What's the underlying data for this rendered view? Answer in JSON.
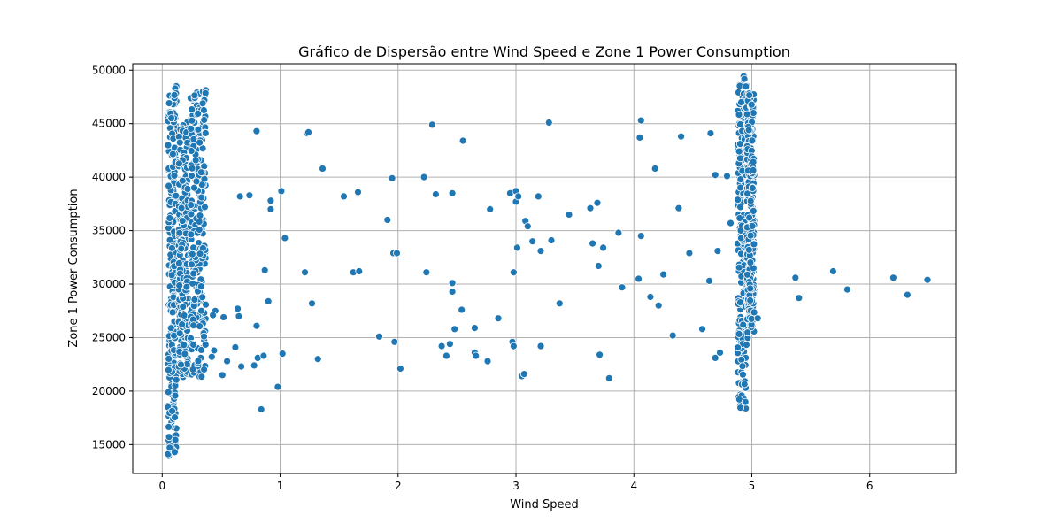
{
  "chart_data": {
    "type": "scatter",
    "title": "Gráfico de Dispersão entre Wind Speed e Zone 1 Power Consumption",
    "xlabel": "Wind Speed",
    "ylabel": "Zone 1 Power Consumption",
    "xlim": [
      -0.25,
      6.73
    ],
    "ylim": [
      12300,
      50600
    ],
    "xticks": [
      0,
      1,
      2,
      3,
      4,
      5,
      6
    ],
    "yticks": [
      15000,
      20000,
      25000,
      30000,
      35000,
      40000,
      45000,
      50000
    ],
    "xtick_labels": [
      "0",
      "1",
      "2",
      "3",
      "4",
      "5",
      "6"
    ],
    "ytick_labels": [
      "15000",
      "20000",
      "25000",
      "30000",
      "35000",
      "40000",
      "45000",
      "50000"
    ],
    "grid": true,
    "marker_color": "#1f77b4",
    "marker_edge_color": "#ffffff",
    "clusters": [
      {
        "x_range": [
          0.05,
          0.12
        ],
        "y_range": [
          13900,
          48700
        ]
      },
      {
        "x_range": [
          0.14,
          0.22
        ],
        "y_range": [
          21300,
          45200
        ]
      },
      {
        "x_range": [
          0.24,
          0.37
        ],
        "y_range": [
          21300,
          48300
        ]
      },
      {
        "x_range": [
          4.88,
          4.96
        ],
        "y_range": [
          18300,
          49800
        ]
      },
      {
        "x_range": [
          4.96,
          5.02
        ],
        "y_range": [
          24900,
          47900
        ]
      }
    ],
    "points": [
      {
        "x": 0.45,
        "y": 27500
      },
      {
        "x": 0.43,
        "y": 27100
      },
      {
        "x": 0.44,
        "y": 23800
      },
      {
        "x": 0.42,
        "y": 23200
      },
      {
        "x": 0.52,
        "y": 26900
      },
      {
        "x": 0.51,
        "y": 21500
      },
      {
        "x": 0.55,
        "y": 22800
      },
      {
        "x": 0.62,
        "y": 24100
      },
      {
        "x": 0.64,
        "y": 27700
      },
      {
        "x": 0.65,
        "y": 27000
      },
      {
        "x": 0.67,
        "y": 22300
      },
      {
        "x": 0.66,
        "y": 38200
      },
      {
        "x": 0.74,
        "y": 38300
      },
      {
        "x": 0.78,
        "y": 22400
      },
      {
        "x": 0.8,
        "y": 26100
      },
      {
        "x": 0.8,
        "y": 44300
      },
      {
        "x": 0.81,
        "y": 23100
      },
      {
        "x": 0.84,
        "y": 18300
      },
      {
        "x": 0.86,
        "y": 23300
      },
      {
        "x": 0.87,
        "y": 31300
      },
      {
        "x": 0.9,
        "y": 28400
      },
      {
        "x": 0.92,
        "y": 37800
      },
      {
        "x": 0.92,
        "y": 37000
      },
      {
        "x": 0.98,
        "y": 20400
      },
      {
        "x": 1.01,
        "y": 38700
      },
      {
        "x": 1.02,
        "y": 23500
      },
      {
        "x": 1.04,
        "y": 34300
      },
      {
        "x": 1.21,
        "y": 31100
      },
      {
        "x": 1.23,
        "y": 44100
      },
      {
        "x": 1.24,
        "y": 44200
      },
      {
        "x": 1.27,
        "y": 28200
      },
      {
        "x": 1.32,
        "y": 23000
      },
      {
        "x": 1.36,
        "y": 40800
      },
      {
        "x": 1.54,
        "y": 38200
      },
      {
        "x": 1.62,
        "y": 31100
      },
      {
        "x": 1.66,
        "y": 38600
      },
      {
        "x": 1.67,
        "y": 31200
      },
      {
        "x": 1.84,
        "y": 25100
      },
      {
        "x": 1.91,
        "y": 36000
      },
      {
        "x": 1.95,
        "y": 39900
      },
      {
        "x": 1.96,
        "y": 32900
      },
      {
        "x": 1.97,
        "y": 24600
      },
      {
        "x": 1.99,
        "y": 32900
      },
      {
        "x": 2.02,
        "y": 22100
      },
      {
        "x": 2.22,
        "y": 40000
      },
      {
        "x": 2.24,
        "y": 31100
      },
      {
        "x": 2.29,
        "y": 44900
      },
      {
        "x": 2.32,
        "y": 38400
      },
      {
        "x": 2.37,
        "y": 24200
      },
      {
        "x": 2.41,
        "y": 23300
      },
      {
        "x": 2.44,
        "y": 24400
      },
      {
        "x": 2.46,
        "y": 30100
      },
      {
        "x": 2.46,
        "y": 29300
      },
      {
        "x": 2.46,
        "y": 38500
      },
      {
        "x": 2.48,
        "y": 25800
      },
      {
        "x": 2.54,
        "y": 27600
      },
      {
        "x": 2.55,
        "y": 43400
      },
      {
        "x": 2.65,
        "y": 25900
      },
      {
        "x": 2.65,
        "y": 23600
      },
      {
        "x": 2.66,
        "y": 23300
      },
      {
        "x": 2.76,
        "y": 22800
      },
      {
        "x": 2.78,
        "y": 37000
      },
      {
        "x": 2.85,
        "y": 26800
      },
      {
        "x": 2.95,
        "y": 38500
      },
      {
        "x": 2.97,
        "y": 24600
      },
      {
        "x": 2.98,
        "y": 24200
      },
      {
        "x": 2.98,
        "y": 31100
      },
      {
        "x": 3.0,
        "y": 38700
      },
      {
        "x": 3.0,
        "y": 37700
      },
      {
        "x": 3.01,
        "y": 33400
      },
      {
        "x": 3.02,
        "y": 38200
      },
      {
        "x": 3.05,
        "y": 21400
      },
      {
        "x": 3.07,
        "y": 21600
      },
      {
        "x": 3.08,
        "y": 35900
      },
      {
        "x": 3.1,
        "y": 35400
      },
      {
        "x": 3.14,
        "y": 34000
      },
      {
        "x": 3.19,
        "y": 38200
      },
      {
        "x": 3.21,
        "y": 33100
      },
      {
        "x": 3.21,
        "y": 24200
      },
      {
        "x": 3.28,
        "y": 45100
      },
      {
        "x": 3.3,
        "y": 34100
      },
      {
        "x": 3.37,
        "y": 28200
      },
      {
        "x": 3.45,
        "y": 36500
      },
      {
        "x": 3.63,
        "y": 37100
      },
      {
        "x": 3.65,
        "y": 33800
      },
      {
        "x": 3.69,
        "y": 37600
      },
      {
        "x": 3.7,
        "y": 31700
      },
      {
        "x": 3.71,
        "y": 23400
      },
      {
        "x": 3.74,
        "y": 33400
      },
      {
        "x": 3.79,
        "y": 21200
      },
      {
        "x": 3.87,
        "y": 34800
      },
      {
        "x": 3.9,
        "y": 29700
      },
      {
        "x": 4.04,
        "y": 30500
      },
      {
        "x": 4.06,
        "y": 45300
      },
      {
        "x": 4.05,
        "y": 43700
      },
      {
        "x": 4.06,
        "y": 34500
      },
      {
        "x": 4.14,
        "y": 28800
      },
      {
        "x": 4.18,
        "y": 40800
      },
      {
        "x": 4.21,
        "y": 28000
      },
      {
        "x": 4.25,
        "y": 30900
      },
      {
        "x": 4.33,
        "y": 25200
      },
      {
        "x": 4.38,
        "y": 37100
      },
      {
        "x": 4.4,
        "y": 43800
      },
      {
        "x": 4.47,
        "y": 32900
      },
      {
        "x": 4.58,
        "y": 25800
      },
      {
        "x": 4.65,
        "y": 44100
      },
      {
        "x": 4.64,
        "y": 30300
      },
      {
        "x": 4.69,
        "y": 40200
      },
      {
        "x": 4.69,
        "y": 23100
      },
      {
        "x": 4.71,
        "y": 33100
      },
      {
        "x": 4.73,
        "y": 23600
      },
      {
        "x": 4.79,
        "y": 40100
      },
      {
        "x": 4.82,
        "y": 35700
      },
      {
        "x": 5.05,
        "y": 26800
      },
      {
        "x": 5.37,
        "y": 30600
      },
      {
        "x": 5.4,
        "y": 28700
      },
      {
        "x": 5.69,
        "y": 31200
      },
      {
        "x": 5.81,
        "y": 29500
      },
      {
        "x": 6.2,
        "y": 30600
      },
      {
        "x": 6.32,
        "y": 29000
      },
      {
        "x": 6.49,
        "y": 30400
      }
    ]
  }
}
